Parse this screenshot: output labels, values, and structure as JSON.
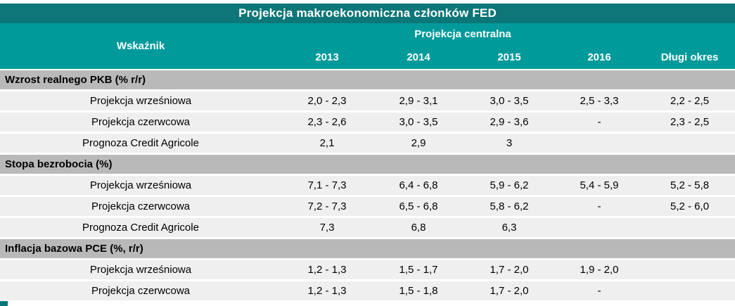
{
  "chart_data": {
    "type": "table",
    "title": "Projekcja makroekonomiczna członków FED",
    "header": {
      "indicator": "Wskaźnik",
      "group": "Projekcja centralna",
      "years": [
        "2013",
        "2014",
        "2015",
        "2016"
      ],
      "long_run": "Długi okres"
    },
    "sections": [
      {
        "name": "Wzrost realnego PKB (% r/r)",
        "rows": [
          {
            "label": "Projekcja wrześniowa",
            "values": [
              "2,0 - 2,3",
              "2,9 - 3,1",
              "3,0 - 3,5",
              "2,5 - 3,3",
              "2,2 - 2,5"
            ]
          },
          {
            "label": "Projekcja czerwcowa",
            "values": [
              "2,3 - 2,6",
              "3,0 - 3,5",
              "2,9 - 3,6",
              "-",
              "2,3 - 2,5"
            ]
          },
          {
            "label": "Prognoza Credit Agricole",
            "values": [
              "2,1",
              "2,9",
              "3",
              "",
              ""
            ]
          }
        ]
      },
      {
        "name": "Stopa bezrobocia (%)",
        "rows": [
          {
            "label": "Projekcja wrześniowa",
            "values": [
              "7,1 - 7,3",
              "6,4 - 6,8",
              "5,9 - 6,2",
              "5,4 - 5,9",
              "5,2 - 5,8"
            ]
          },
          {
            "label": "Projekcja czerwcowa",
            "values": [
              "7,2 - 7,3",
              "6,5 - 6,8",
              "5,8 - 6,2",
              "-",
              "5,2 - 6,0"
            ]
          },
          {
            "label": "Prognoza Credit Agricole",
            "values": [
              "7,3",
              "6,8",
              "6,3",
              "",
              ""
            ]
          }
        ]
      },
      {
        "name": "Inflacja bazowa PCE (%, r/r)",
        "rows": [
          {
            "label": "Projekcja wrześniowa",
            "values": [
              "1,2 - 1,3",
              "1,5 - 1,7",
              "1,7 - 2,0",
              "1,9 - 2,0",
              ""
            ]
          },
          {
            "label": "Projekcja czerwcowa",
            "values": [
              "1,2 - 1,3",
              "1,5 - 1,8",
              "1,7 - 2,0",
              "-",
              ""
            ]
          }
        ]
      }
    ],
    "layout": {
      "columns": [
        "Wskaźnik",
        "2013",
        "2014",
        "2015",
        "2016",
        "Długi okres"
      ],
      "group_spans_years": true
    }
  },
  "colors": {
    "title_bar": "#0d7678",
    "header_teal": "#009a9b",
    "section_gray": "#b9b9b9",
    "row_gray": "#efefef",
    "text_dark": "#000000",
    "text_light": "#ffffff"
  }
}
